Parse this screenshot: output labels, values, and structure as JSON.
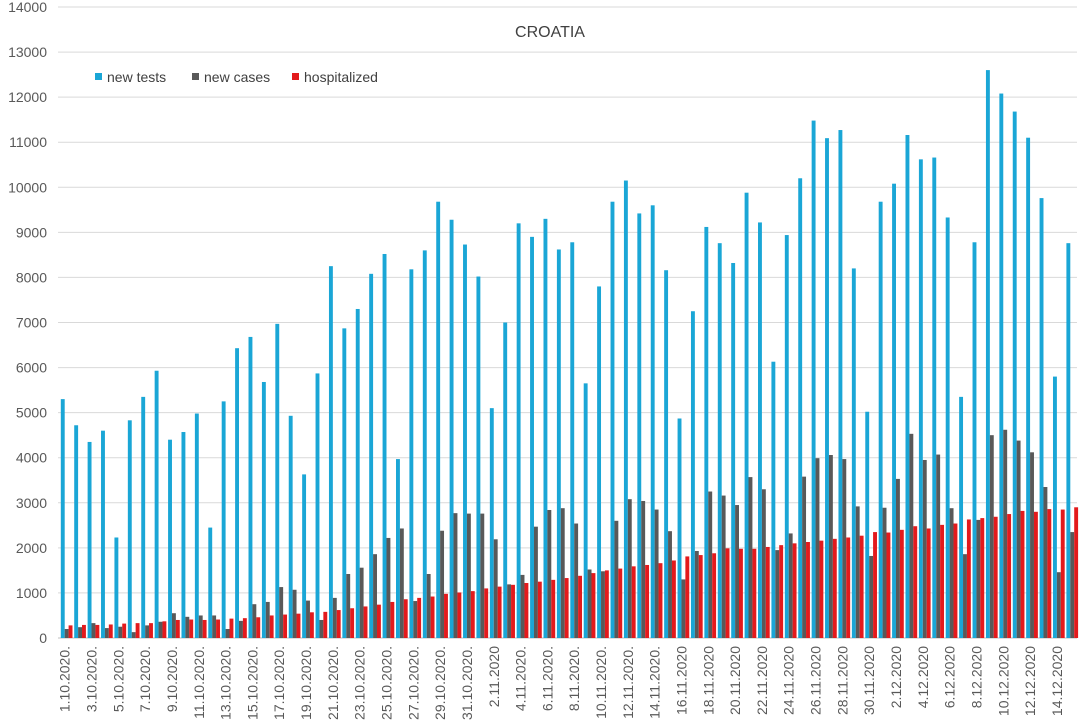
{
  "chart_data": {
    "type": "bar",
    "title": "CROATIA",
    "xlabel": "",
    "ylabel": "",
    "ylim": [
      0,
      14000
    ],
    "yticks": [
      "0",
      "1000",
      "2000",
      "3000",
      "4000",
      "5000",
      "6000",
      "7000",
      "8000",
      "9000",
      "10000",
      "11000",
      "12000",
      "13000",
      "14000"
    ],
    "grid": true,
    "legend_position": "top-left",
    "categories": [
      "1.10.2020.",
      "2.10.2020.",
      "3.10.2020.",
      "4.10.2020.",
      "5.10.2020.",
      "6.10.2020.",
      "7.10.2020.",
      "8.10.2020.",
      "9.10.2020.",
      "10.10.2020.",
      "11.10.2020.",
      "12.10.2020.",
      "13.10.2020.",
      "14.10.2020.",
      "15.10.2020.",
      "16.10.2020.",
      "17.10.2020.",
      "18.10.2020.",
      "19.10.2020.",
      "20.10.2020.",
      "21.10.2020.",
      "22.10.2020.",
      "23.10.2020.",
      "24.10.2020.",
      "25.10.2020.",
      "26.10.2020.",
      "27.10.2020.",
      "28.10.2020.",
      "29.10.2020.",
      "30.10.2020.",
      "31.10.2020.",
      "1.11.2020.",
      "2.11.2020",
      "3.11.2020",
      "4.11.2020.",
      "5.11.2020.",
      "6.11.2020.",
      "7.11.2020.",
      "8.11.2020.",
      "9.11.2020.",
      "10.11.2020.",
      "11.11.2020.",
      "12.11.2020.",
      "13.11.2020.",
      "14.11.2020.",
      "15.11.2020.",
      "16.11.2020",
      "17.11.2020",
      "18.11.2020",
      "19.11.2020",
      "20.11.2020",
      "21.11.2020",
      "22.11.2020",
      "23.11.2020",
      "24.11.2020",
      "25.11.2020",
      "26.11.2020",
      "27.11.2020",
      "28.11.2020",
      "29.11.2020",
      "30.11.2020",
      "1.12.2020",
      "2.12.2020",
      "3.12.2020",
      "4.12.2020",
      "5.12.2020",
      "6.12.2020",
      "7.12.2020",
      "8.12.2020",
      "9.12.2020",
      "10.12.2020",
      "11.12.2020",
      "12.12.2020",
      "13.12.2020",
      "14.12.2020",
      "15.12.2020"
    ],
    "shown_labels": [
      "1.10.2020.",
      "3.10.2020.",
      "5.10.2020.",
      "7.10.2020.",
      "9.10.2020.",
      "11.10.2020.",
      "13.10.2020.",
      "15.10.2020.",
      "17.10.2020.",
      "19.10.2020.",
      "21.10.2020.",
      "23.10.2020.",
      "25.10.2020.",
      "27.10.2020.",
      "29.10.2020.",
      "31.10.2020.",
      "2.11.2020",
      "4.11.2020.",
      "6.11.2020.",
      "8.11.2020.",
      "10.11.2020.",
      "12.11.2020.",
      "14.11.2020.",
      "16.11.2020",
      "18.11.2020",
      "20.11.2020",
      "22.11.2020",
      "24.11.2020",
      "26.11.2020",
      "28.11.2020",
      "30.11.2020",
      "2.12.2020",
      "4.12.2020",
      "6.12.2020",
      "8.12.2020",
      "10.12.2020",
      "12.12.2020",
      "14.12.2020"
    ],
    "series": [
      {
        "name": "new tests",
        "color": "#1aa6d6",
        "values": [
          5300,
          4720,
          4350,
          4600,
          2230,
          4830,
          5350,
          5930,
          4400,
          4570,
          4980,
          2450,
          5250,
          6430,
          6680,
          5680,
          6970,
          4930,
          3630,
          5870,
          8250,
          6870,
          7300,
          8080,
          8520,
          3970,
          8180,
          8600,
          9680,
          9280,
          8730,
          8020,
          5100,
          7000,
          9200,
          8900,
          9300,
          8620,
          8780,
          5650,
          7800,
          9680,
          10150,
          9420,
          9600,
          8160,
          4870,
          7250,
          9120,
          8760,
          8320,
          9880,
          9220,
          6130,
          8940,
          10200,
          11480,
          11090,
          11270,
          8200,
          5020,
          9680,
          10080,
          11160,
          10620,
          10660,
          9330,
          5350,
          8780,
          12600,
          12080,
          11680,
          11100,
          9760,
          5800,
          8760
        ]
      },
      {
        "name": "new cases",
        "color": "#595959",
        "values": [
          200,
          240,
          330,
          220,
          250,
          130,
          280,
          360,
          550,
          470,
          500,
          500,
          200,
          380,
          750,
          800,
          1130,
          1070,
          830,
          400,
          890,
          1420,
          1560,
          1860,
          2220,
          2430,
          820,
          1420,
          2380,
          2770,
          2760,
          2760,
          2190,
          1190,
          1400,
          2470,
          2840,
          2880,
          2540,
          1520,
          1480,
          2600,
          3080,
          3040,
          2850,
          2370,
          1300,
          1930,
          3250,
          3160,
          2950,
          3570,
          3300,
          1950,
          2320,
          3580,
          3990,
          4060,
          3970,
          2920,
          1820,
          2890,
          3530,
          4530,
          3950,
          4070,
          2880,
          1860,
          2620,
          4500,
          4620,
          4380,
          4120,
          3350,
          1460,
          2350
        ]
      },
      {
        "name": "hospitalized",
        "color": "#e31a1c",
        "values": [
          280,
          290,
          290,
          300,
          320,
          330,
          330,
          370,
          400,
          410,
          400,
          410,
          430,
          440,
          460,
          500,
          520,
          540,
          570,
          580,
          620,
          660,
          700,
          740,
          800,
          860,
          890,
          920,
          980,
          1010,
          1040,
          1100,
          1140,
          1180,
          1220,
          1250,
          1290,
          1330,
          1380,
          1440,
          1500,
          1540,
          1590,
          1620,
          1660,
          1720,
          1810,
          1840,
          1880,
          1990,
          1980,
          1980,
          2020,
          2060,
          2100,
          2130,
          2160,
          2200,
          2230,
          2270,
          2350,
          2340,
          2400,
          2480,
          2430,
          2510,
          2540,
          2630,
          2660,
          2690,
          2750,
          2820,
          2800,
          2860,
          2850,
          2900
        ]
      }
    ]
  }
}
